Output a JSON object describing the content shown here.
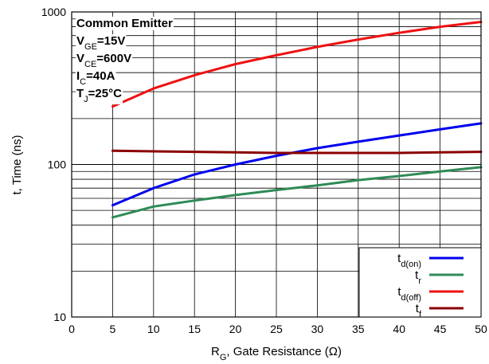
{
  "chart_data": {
    "type": "line",
    "xlabel": {
      "main": "R",
      "sub": "G",
      "rest": ", Gate Resistance (Ω)"
    },
    "ylabel": "t, Time (ns)",
    "xlim": [
      0,
      50
    ],
    "ylim": [
      10,
      1000
    ],
    "y_scale": "log",
    "grid": true,
    "x_ticks": [
      "0",
      "5",
      "10",
      "15",
      "20",
      "25",
      "30",
      "35",
      "40",
      "45",
      "50"
    ],
    "y_ticks": [
      "10",
      "100",
      "1000"
    ],
    "legend_position": "bottom-right",
    "annotations": [
      {
        "parts": [
          {
            "t": "Common Emitter"
          }
        ]
      },
      {
        "parts": [
          {
            "t": "V"
          },
          {
            "t": "GE",
            "sub": true
          },
          {
            "t": "=15V"
          }
        ]
      },
      {
        "parts": [
          {
            "t": "V"
          },
          {
            "t": "CE",
            "sub": true
          },
          {
            "t": "=600V"
          }
        ]
      },
      {
        "parts": [
          {
            "t": "I"
          },
          {
            "t": "C",
            "sub": true
          },
          {
            "t": "=40A"
          }
        ]
      },
      {
        "parts": [
          {
            "t": "T"
          },
          {
            "t": "J",
            "sub": true
          },
          {
            "t": "=25°C"
          }
        ]
      }
    ],
    "series": [
      {
        "label_main": "t",
        "label_sub": "d(on)",
        "color": "#0000ee",
        "x": [
          5,
          10,
          15,
          20,
          25,
          30,
          35,
          40,
          45,
          50
        ],
        "y": [
          54,
          70,
          86,
          100,
          114,
          128,
          141,
          155,
          170,
          186
        ]
      },
      {
        "label_main": "t",
        "label_sub": "r",
        "color": "#2e8b57",
        "x": [
          5,
          10,
          15,
          20,
          25,
          30,
          35,
          40,
          45,
          50
        ],
        "y": [
          45,
          53,
          58,
          63,
          68,
          73,
          79,
          84,
          90,
          96
        ]
      },
      {
        "label_main": "t",
        "label_sub": "d(off)",
        "color": "#ee1111",
        "x": [
          5,
          10,
          15,
          20,
          25,
          30,
          35,
          40,
          45,
          50
        ],
        "y": [
          240,
          315,
          385,
          455,
          520,
          590,
          660,
          730,
          800,
          860
        ]
      },
      {
        "label_main": "t",
        "label_sub": "f",
        "color": "#8b0000",
        "x": [
          5,
          10,
          15,
          20,
          25,
          30,
          35,
          40,
          45,
          50
        ],
        "y": [
          123,
          122,
          121,
          120,
          119,
          119,
          119,
          119,
          120,
          121
        ]
      }
    ]
  }
}
